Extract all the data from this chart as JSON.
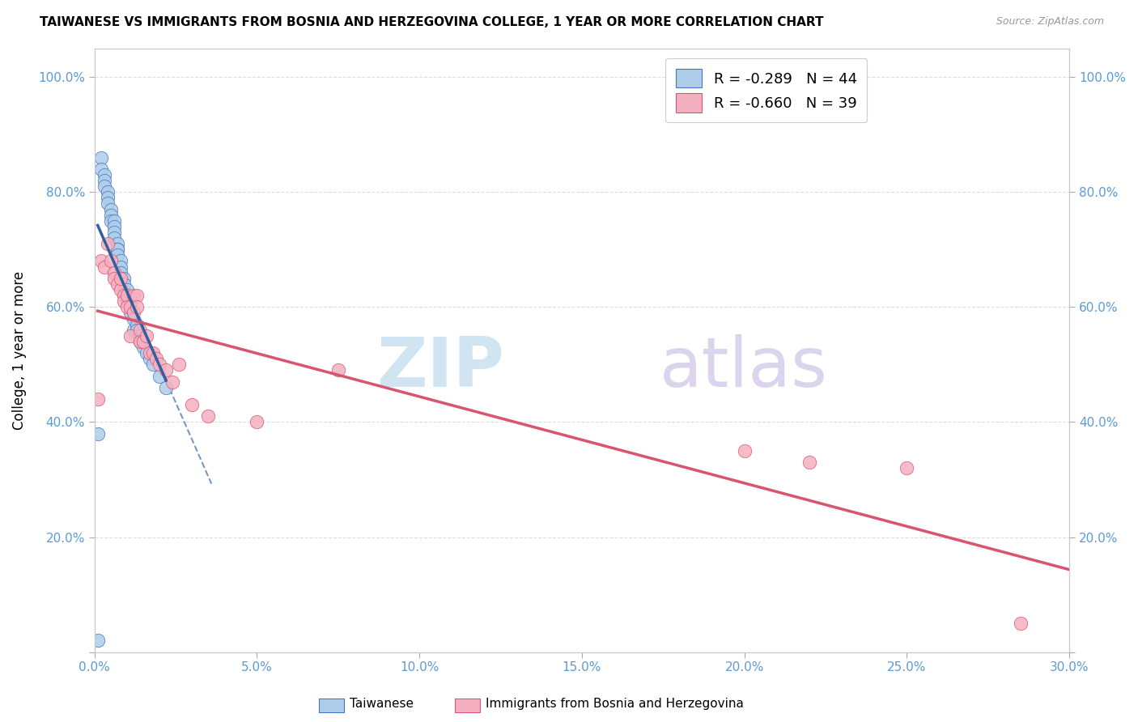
{
  "title": "TAIWANESE VS IMMIGRANTS FROM BOSNIA AND HERZEGOVINA COLLEGE, 1 YEAR OR MORE CORRELATION CHART",
  "source": "Source: ZipAtlas.com",
  "ylabel": "College, 1 year or more",
  "xmin": 0.0,
  "xmax": 0.3,
  "ymin": 0.0,
  "ymax": 1.05,
  "xticks": [
    0.0,
    0.05,
    0.1,
    0.15,
    0.2,
    0.25,
    0.3
  ],
  "xtick_labels": [
    "0.0%",
    "5.0%",
    "10.0%",
    "15.0%",
    "20.0%",
    "25.0%",
    "30.0%"
  ],
  "yticks": [
    0.0,
    0.2,
    0.4,
    0.6,
    0.8,
    1.0
  ],
  "ytick_labels": [
    "",
    "20.0%",
    "40.0%",
    "60.0%",
    "80.0%",
    "100.0%"
  ],
  "r1": "-0.289",
  "n1": "44",
  "r2": "-0.660",
  "n2": "39",
  "color_taiwanese": "#aecde8",
  "color_taiwanese_edge": "#4472c4",
  "color_bosnia": "#f4b0c0",
  "color_bosnia_edge": "#d9546e",
  "color_reg_taiwanese": "#3060a0",
  "color_reg_bosnia": "#d9546e",
  "legend_label1": "Taiwanese",
  "legend_label2": "Immigrants from Bosnia and Herzegovina",
  "taiwanese_x": [
    0.001,
    0.002,
    0.002,
    0.003,
    0.003,
    0.003,
    0.004,
    0.004,
    0.004,
    0.005,
    0.005,
    0.005,
    0.006,
    0.006,
    0.006,
    0.006,
    0.007,
    0.007,
    0.007,
    0.007,
    0.008,
    0.008,
    0.008,
    0.009,
    0.009,
    0.01,
    0.01,
    0.01,
    0.011,
    0.011,
    0.011,
    0.012,
    0.012,
    0.013,
    0.013,
    0.014,
    0.014,
    0.015,
    0.016,
    0.017,
    0.018,
    0.02,
    0.022,
    0.001
  ],
  "taiwanese_y": [
    0.02,
    0.86,
    0.84,
    0.83,
    0.82,
    0.81,
    0.8,
    0.79,
    0.78,
    0.77,
    0.76,
    0.75,
    0.75,
    0.74,
    0.73,
    0.72,
    0.71,
    0.7,
    0.7,
    0.69,
    0.68,
    0.67,
    0.66,
    0.65,
    0.64,
    0.63,
    0.62,
    0.61,
    0.61,
    0.6,
    0.59,
    0.58,
    0.56,
    0.57,
    0.56,
    0.55,
    0.54,
    0.53,
    0.52,
    0.51,
    0.5,
    0.48,
    0.46,
    0.38
  ],
  "bosnia_x": [
    0.001,
    0.002,
    0.003,
    0.004,
    0.005,
    0.006,
    0.006,
    0.007,
    0.008,
    0.008,
    0.009,
    0.009,
    0.01,
    0.01,
    0.011,
    0.011,
    0.012,
    0.012,
    0.013,
    0.013,
    0.014,
    0.014,
    0.015,
    0.016,
    0.017,
    0.018,
    0.019,
    0.02,
    0.022,
    0.024,
    0.026,
    0.03,
    0.035,
    0.05,
    0.075,
    0.2,
    0.22,
    0.25,
    0.285
  ],
  "bosnia_y": [
    0.44,
    0.68,
    0.67,
    0.71,
    0.68,
    0.66,
    0.65,
    0.64,
    0.63,
    0.65,
    0.62,
    0.61,
    0.62,
    0.6,
    0.6,
    0.55,
    0.62,
    0.59,
    0.62,
    0.6,
    0.56,
    0.54,
    0.54,
    0.55,
    0.52,
    0.52,
    0.51,
    0.5,
    0.49,
    0.47,
    0.5,
    0.43,
    0.41,
    0.4,
    0.49,
    0.35,
    0.33,
    0.32,
    0.05
  ]
}
